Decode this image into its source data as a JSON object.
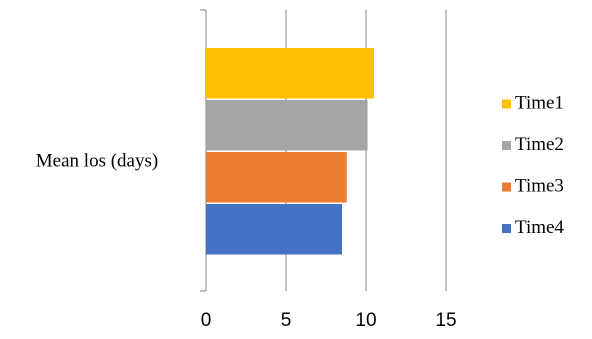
{
  "chart_data": {
    "type": "bar",
    "orientation": "horizontal",
    "categories": [
      "Mean los (days)"
    ],
    "series": [
      {
        "name": "Time1",
        "values": [
          10.5
        ],
        "color": "#FFC000"
      },
      {
        "name": "Time2",
        "values": [
          10.1
        ],
        "color": "#A5A5A5"
      },
      {
        "name": "Time3",
        "values": [
          8.8
        ],
        "color": "#ED7D31"
      },
      {
        "name": "Time4",
        "values": [
          8.5
        ],
        "color": "#4472C4"
      }
    ],
    "xticks": [
      0,
      5,
      10,
      15
    ],
    "xlim": [
      0,
      15
    ],
    "grid": true,
    "legend": "right"
  }
}
